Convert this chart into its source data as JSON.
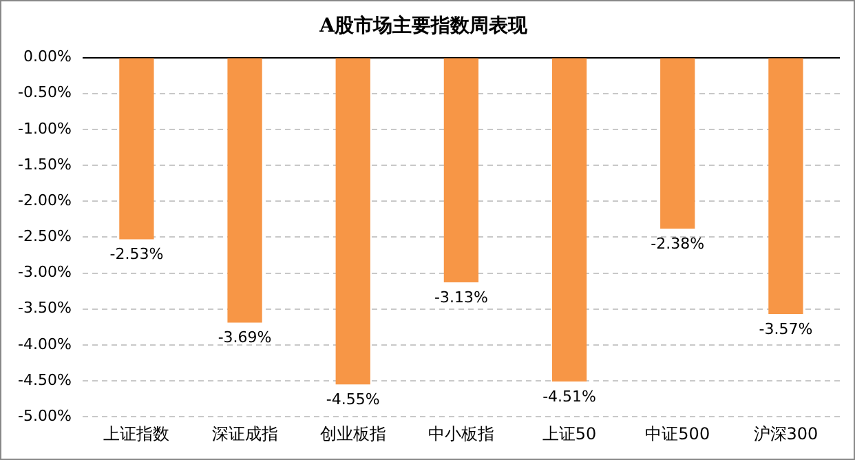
{
  "chart_data": {
    "type": "bar",
    "title": "A股市场主要指数周表现",
    "categories": [
      "上证指数",
      "深证成指",
      "创业板指",
      "中小板指",
      "上证50",
      "中证500",
      "沪深300"
    ],
    "values": [
      -2.53,
      -3.69,
      -4.55,
      -3.13,
      -4.51,
      -2.38,
      -3.57
    ],
    "value_labels": [
      "-2.53%",
      "-3.69%",
      "-4.55%",
      "-3.13%",
      "-4.51%",
      "-2.38%",
      "-3.57%"
    ],
    "color": "#f79646",
    "ylim": [
      -5,
      0
    ],
    "yticks": [
      {
        "value": 0,
        "label": "0.00%"
      },
      {
        "value": -0.5,
        "label": "-0.50%"
      },
      {
        "value": -1,
        "label": "-1.00%"
      },
      {
        "value": -1.5,
        "label": "-1.50%"
      },
      {
        "value": -2,
        "label": "-2.00%"
      },
      {
        "value": -2.5,
        "label": "-2.50%"
      },
      {
        "value": -3,
        "label": "-3.00%"
      },
      {
        "value": -3.5,
        "label": "-3.50%"
      },
      {
        "value": -4,
        "label": "-4.00%"
      },
      {
        "value": -4.5,
        "label": "-4.50%"
      },
      {
        "value": -5,
        "label": "-5.00%"
      }
    ],
    "grid": "y"
  }
}
